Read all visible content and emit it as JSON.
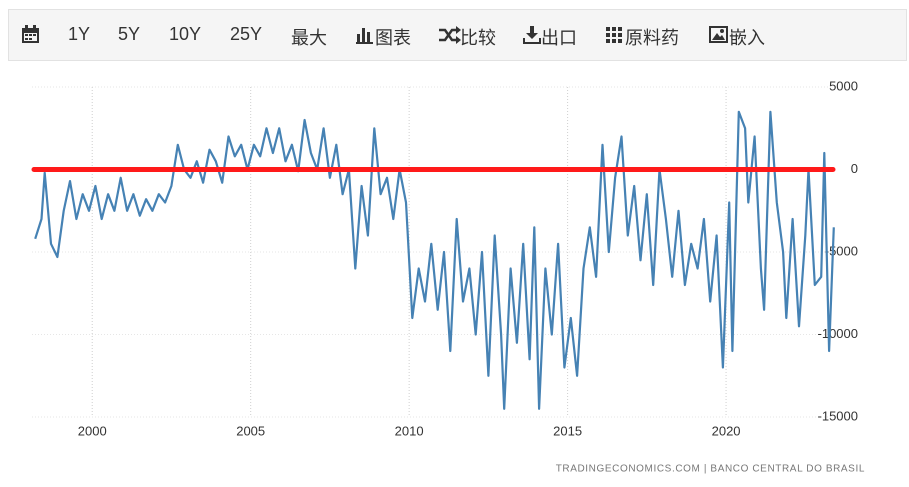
{
  "toolbar": {
    "ranges": [
      "1Y",
      "5Y",
      "10Y",
      "25Y",
      "最大"
    ],
    "buttons": [
      "图表",
      "比较",
      "出口",
      "原料药",
      "嵌入"
    ]
  },
  "chart_data": {
    "type": "line",
    "color": "#4682b4",
    "x": [
      1998.2,
      1998.4,
      1998.5,
      1998.7,
      1998.9,
      1999.1,
      1999.3,
      1999.5,
      1999.7,
      1999.9,
      2000.1,
      2000.3,
      2000.5,
      2000.7,
      2000.9,
      2001.1,
      2001.3,
      2001.5,
      2001.7,
      2001.9,
      2002.1,
      2002.3,
      2002.5,
      2002.7,
      2002.9,
      2003.1,
      2003.3,
      2003.5,
      2003.7,
      2003.9,
      2004.1,
      2004.3,
      2004.5,
      2004.7,
      2004.9,
      2005.1,
      2005.3,
      2005.5,
      2005.7,
      2005.9,
      2006.1,
      2006.3,
      2006.5,
      2006.7,
      2006.9,
      2007.1,
      2007.3,
      2007.5,
      2007.7,
      2007.9,
      2008.1,
      2008.3,
      2008.5,
      2008.7,
      2008.9,
      2009.1,
      2009.3,
      2009.5,
      2009.7,
      2009.9,
      2010.1,
      2010.3,
      2010.5,
      2010.7,
      2010.9,
      2011.1,
      2011.3,
      2011.5,
      2011.7,
      2011.9,
      2012.1,
      2012.3,
      2012.5,
      2012.7,
      2012.9,
      2013.0,
      2013.2,
      2013.4,
      2013.6,
      2013.8,
      2013.95,
      2014.1,
      2014.3,
      2014.5,
      2014.7,
      2014.9,
      2015.1,
      2015.3,
      2015.5,
      2015.7,
      2015.9,
      2016.1,
      2016.3,
      2016.5,
      2016.7,
      2016.9,
      2017.1,
      2017.3,
      2017.5,
      2017.7,
      2017.9,
      2018.1,
      2018.3,
      2018.5,
      2018.7,
      2018.9,
      2019.1,
      2019.3,
      2019.5,
      2019.7,
      2019.9,
      2020.1,
      2020.2,
      2020.4,
      2020.6,
      2020.7,
      2020.9,
      2021.1,
      2021.2,
      2021.4,
      2021.6,
      2021.8,
      2021.9,
      2022.1,
      2022.3,
      2022.5,
      2022.6,
      2022.8,
      2023.0,
      2023.1,
      2023.25,
      2023.4
    ],
    "values": [
      -4200,
      -3000,
      -200,
      -4500,
      -5300,
      -2500,
      -700,
      -3000,
      -1500,
      -2500,
      -1000,
      -3000,
      -1500,
      -2500,
      -500,
      -2500,
      -1500,
      -2800,
      -1800,
      -2500,
      -1500,
      -2000,
      -1000,
      1500,
      0,
      -500,
      500,
      -800,
      1200,
      500,
      -800,
      2000,
      800,
      1500,
      0,
      1500,
      800,
      2500,
      1000,
      2500,
      500,
      1500,
      -100,
      3000,
      1000,
      0,
      2500,
      -500,
      1500,
      -1500,
      0,
      -6000,
      -1000,
      -4000,
      2500,
      -1500,
      -500,
      -3000,
      0,
      -2000,
      -9000,
      -6000,
      -8000,
      -4500,
      -8500,
      -5000,
      -11000,
      -3000,
      -8000,
      -6000,
      -10000,
      -5000,
      -12500,
      -4000,
      -10000,
      -14500,
      -6000,
      -10500,
      -4500,
      -11500,
      -3500,
      -14500,
      -6000,
      -10000,
      -4500,
      -12000,
      -9000,
      -12500,
      -6000,
      -3500,
      -6500,
      1500,
      -5000,
      -500,
      2000,
      -4000,
      -1000,
      -5500,
      -1500,
      -7000,
      0,
      -3000,
      -6500,
      -2500,
      -7000,
      -4500,
      -6000,
      -3000,
      -8000,
      -4000,
      -12000,
      -2000,
      -11000,
      3500,
      2500,
      -2000,
      2000,
      -6000,
      -8500,
      3500,
      -2000,
      -5000,
      -9000,
      -3000,
      -9500,
      -4000,
      0,
      -7000,
      -6500,
      1000,
      -11000,
      -3500
    ],
    "xlim": [
      1998.1,
      2023.5
    ],
    "xticks": [
      2000,
      2005,
      2010,
      2015,
      2020
    ],
    "ylim": [
      -15000,
      5000
    ],
    "yticks": [
      -15000,
      -10000,
      -5000,
      0,
      5000
    ],
    "grid": true,
    "reference_line": {
      "value": 0,
      "color": "#ff1a1a"
    },
    "source": "TRADINGECONOMICS.COM | BANCO CENTRAL DO BRASIL"
  }
}
